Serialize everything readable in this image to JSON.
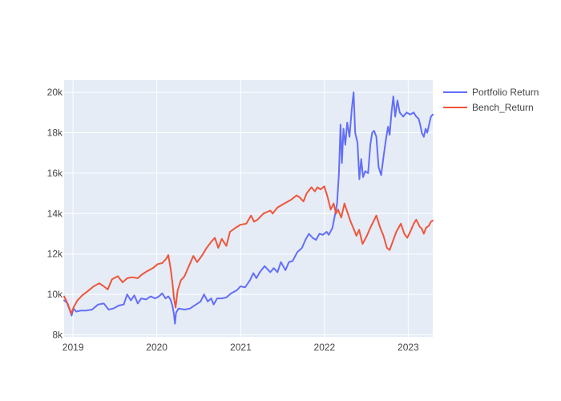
{
  "chart_data": {
    "type": "line",
    "title": "",
    "xlabel": "",
    "ylabel": "",
    "x_tick_labels": [
      "2019",
      "2020",
      "2021",
      "2022",
      "2023"
    ],
    "y_tick_labels": [
      "8k",
      "10k",
      "12k",
      "14k",
      "16k",
      "18k",
      "20k"
    ],
    "y_tick_values": [
      8000,
      10000,
      12000,
      14000,
      16000,
      18000,
      20000
    ],
    "xlim": [
      "2018-11-23",
      "2023-04-18"
    ],
    "ylim": [
      7900,
      20600
    ],
    "grid": true,
    "legend_position": "top-right",
    "plot_background": "#E5ECF6",
    "series": [
      {
        "name": "Portfolio Return",
        "color": "#636EFA",
        "points": [
          [
            "2018-11-23",
            9700
          ],
          [
            "2018-12-05",
            9600
          ],
          [
            "2018-12-18",
            9200
          ],
          [
            "2018-12-26",
            8950
          ],
          [
            "2019-01-03",
            9300
          ],
          [
            "2019-01-15",
            9150
          ],
          [
            "2019-02-05",
            9200
          ],
          [
            "2019-03-01",
            9200
          ],
          [
            "2019-03-25",
            9250
          ],
          [
            "2019-04-20",
            9500
          ],
          [
            "2019-05-15",
            9550
          ],
          [
            "2019-06-05",
            9250
          ],
          [
            "2019-06-25",
            9300
          ],
          [
            "2019-07-20",
            9450
          ],
          [
            "2019-08-10",
            9500
          ],
          [
            "2019-08-25",
            10000
          ],
          [
            "2019-09-10",
            9700
          ],
          [
            "2019-09-25",
            9950
          ],
          [
            "2019-10-10",
            9550
          ],
          [
            "2019-10-25",
            9800
          ],
          [
            "2019-11-15",
            9750
          ],
          [
            "2019-12-05",
            9900
          ],
          [
            "2019-12-25",
            9800
          ],
          [
            "2020-01-10",
            9900
          ],
          [
            "2020-01-25",
            10050
          ],
          [
            "2020-02-08",
            9800
          ],
          [
            "2020-02-20",
            9900
          ],
          [
            "2020-03-01",
            9750
          ],
          [
            "2020-03-10",
            9400
          ],
          [
            "2020-03-16",
            9000
          ],
          [
            "2020-03-20",
            8550
          ],
          [
            "2020-03-25",
            9100
          ],
          [
            "2020-04-05",
            9300
          ],
          [
            "2020-05-01",
            9250
          ],
          [
            "2020-05-25",
            9300
          ],
          [
            "2020-06-20",
            9500
          ],
          [
            "2020-07-10",
            9650
          ],
          [
            "2020-07-25",
            10000
          ],
          [
            "2020-08-10",
            9650
          ],
          [
            "2020-08-25",
            9800
          ],
          [
            "2020-09-05",
            9500
          ],
          [
            "2020-09-20",
            9800
          ],
          [
            "2020-10-10",
            9800
          ],
          [
            "2020-10-30",
            9850
          ],
          [
            "2020-11-20",
            10050
          ],
          [
            "2020-12-15",
            10200
          ],
          [
            "2020-12-31",
            10400
          ],
          [
            "2021-01-20",
            10350
          ],
          [
            "2021-02-10",
            10700
          ],
          [
            "2021-02-25",
            11050
          ],
          [
            "2021-03-10",
            10800
          ],
          [
            "2021-03-25",
            11100
          ],
          [
            "2021-04-15",
            11400
          ],
          [
            "2021-05-10",
            11100
          ],
          [
            "2021-05-25",
            11300
          ],
          [
            "2021-06-10",
            11100
          ],
          [
            "2021-06-25",
            11600
          ],
          [
            "2021-07-15",
            11200
          ],
          [
            "2021-07-30",
            11600
          ],
          [
            "2021-08-15",
            11650
          ],
          [
            "2021-09-05",
            12100
          ],
          [
            "2021-09-25",
            12300
          ],
          [
            "2021-10-10",
            12700
          ],
          [
            "2021-10-25",
            13000
          ],
          [
            "2021-11-10",
            12800
          ],
          [
            "2021-11-25",
            12700
          ],
          [
            "2021-12-10",
            13000
          ],
          [
            "2021-12-25",
            12950
          ],
          [
            "2022-01-10",
            13100
          ],
          [
            "2022-01-20",
            12950
          ],
          [
            "2022-02-05",
            13300
          ],
          [
            "2022-02-15",
            13900
          ],
          [
            "2022-02-25",
            14500
          ],
          [
            "2022-03-05",
            16000
          ],
          [
            "2022-03-12",
            18400
          ],
          [
            "2022-03-18",
            16500
          ],
          [
            "2022-03-25",
            18200
          ],
          [
            "2022-04-02",
            17400
          ],
          [
            "2022-04-10",
            18500
          ],
          [
            "2022-04-20",
            17800
          ],
          [
            "2022-04-30",
            19200
          ],
          [
            "2022-05-08",
            20000
          ],
          [
            "2022-05-15",
            18000
          ],
          [
            "2022-05-25",
            17500
          ],
          [
            "2022-06-02",
            15700
          ],
          [
            "2022-06-10",
            16700
          ],
          [
            "2022-06-18",
            15800
          ],
          [
            "2022-06-28",
            16100
          ],
          [
            "2022-07-10",
            16000
          ],
          [
            "2022-07-20",
            17400
          ],
          [
            "2022-07-28",
            18000
          ],
          [
            "2022-08-05",
            18100
          ],
          [
            "2022-08-15",
            17800
          ],
          [
            "2022-08-25",
            16300
          ],
          [
            "2022-09-05",
            15900
          ],
          [
            "2022-09-15",
            16800
          ],
          [
            "2022-09-25",
            17600
          ],
          [
            "2022-10-05",
            18300
          ],
          [
            "2022-10-12",
            17900
          ],
          [
            "2022-10-20",
            19000
          ],
          [
            "2022-10-28",
            19800
          ],
          [
            "2022-11-05",
            18800
          ],
          [
            "2022-11-15",
            19600
          ],
          [
            "2022-11-25",
            19000
          ],
          [
            "2022-12-10",
            18800
          ],
          [
            "2022-12-25",
            19000
          ],
          [
            "2023-01-10",
            18900
          ],
          [
            "2023-01-25",
            19000
          ],
          [
            "2023-02-05",
            18800
          ],
          [
            "2023-02-15",
            18700
          ],
          [
            "2023-02-22",
            18400
          ],
          [
            "2023-03-01",
            18000
          ],
          [
            "2023-03-10",
            17800
          ],
          [
            "2023-03-18",
            18200
          ],
          [
            "2023-03-25",
            18000
          ],
          [
            "2023-04-02",
            18400
          ],
          [
            "2023-04-10",
            18800
          ],
          [
            "2023-04-18",
            18900
          ]
        ]
      },
      {
        "name": "Bench_Return",
        "color": "#EF553B",
        "points": [
          [
            "2018-11-23",
            9900
          ],
          [
            "2018-12-10",
            9500
          ],
          [
            "2018-12-24",
            9050
          ],
          [
            "2019-01-05",
            9400
          ],
          [
            "2019-01-20",
            9700
          ],
          [
            "2019-02-10",
            9950
          ],
          [
            "2019-03-05",
            10150
          ],
          [
            "2019-04-01",
            10400
          ],
          [
            "2019-04-25",
            10550
          ],
          [
            "2019-05-15",
            10400
          ],
          [
            "2019-06-01",
            10250
          ],
          [
            "2019-06-20",
            10750
          ],
          [
            "2019-07-15",
            10900
          ],
          [
            "2019-08-05",
            10600
          ],
          [
            "2019-08-25",
            10800
          ],
          [
            "2019-09-15",
            10850
          ],
          [
            "2019-10-10",
            10800
          ],
          [
            "2019-10-30",
            11000
          ],
          [
            "2019-11-20",
            11150
          ],
          [
            "2019-12-15",
            11300
          ],
          [
            "2020-01-05",
            11500
          ],
          [
            "2020-01-25",
            11550
          ],
          [
            "2020-02-10",
            11750
          ],
          [
            "2020-02-20",
            11950
          ],
          [
            "2020-03-01",
            11300
          ],
          [
            "2020-03-10",
            10500
          ],
          [
            "2020-03-16",
            9800
          ],
          [
            "2020-03-23",
            9350
          ],
          [
            "2020-04-01",
            10200
          ],
          [
            "2020-04-15",
            10700
          ],
          [
            "2020-05-01",
            10900
          ],
          [
            "2020-05-20",
            11400
          ],
          [
            "2020-06-08",
            11900
          ],
          [
            "2020-06-25",
            11600
          ],
          [
            "2020-07-15",
            11900
          ],
          [
            "2020-08-05",
            12300
          ],
          [
            "2020-08-25",
            12600
          ],
          [
            "2020-09-10",
            12800
          ],
          [
            "2020-09-25",
            12300
          ],
          [
            "2020-10-10",
            12750
          ],
          [
            "2020-10-30",
            12400
          ],
          [
            "2020-11-15",
            13100
          ],
          [
            "2020-12-10",
            13300
          ],
          [
            "2020-12-31",
            13450
          ],
          [
            "2021-01-25",
            13500
          ],
          [
            "2021-02-15",
            13900
          ],
          [
            "2021-02-28",
            13600
          ],
          [
            "2021-03-15",
            13700
          ],
          [
            "2021-04-10",
            14000
          ],
          [
            "2021-05-10",
            14150
          ],
          [
            "2021-05-20",
            14000
          ],
          [
            "2021-06-10",
            14300
          ],
          [
            "2021-07-10",
            14500
          ],
          [
            "2021-08-10",
            14700
          ],
          [
            "2021-09-01",
            14900
          ],
          [
            "2021-09-15",
            14800
          ],
          [
            "2021-10-01",
            14600
          ],
          [
            "2021-10-15",
            15000
          ],
          [
            "2021-11-05",
            15300
          ],
          [
            "2021-11-20",
            15100
          ],
          [
            "2021-12-01",
            15300
          ],
          [
            "2021-12-15",
            15200
          ],
          [
            "2021-12-31",
            15350
          ],
          [
            "2022-01-15",
            14800
          ],
          [
            "2022-01-28",
            14200
          ],
          [
            "2022-02-10",
            14500
          ],
          [
            "2022-02-20",
            14000
          ],
          [
            "2022-03-01",
            14200
          ],
          [
            "2022-03-15",
            13800
          ],
          [
            "2022-03-29",
            14500
          ],
          [
            "2022-04-10",
            14100
          ],
          [
            "2022-04-25",
            13600
          ],
          [
            "2022-05-10",
            13200
          ],
          [
            "2022-05-20",
            12900
          ],
          [
            "2022-06-01",
            13200
          ],
          [
            "2022-06-16",
            12500
          ],
          [
            "2022-07-05",
            12900
          ],
          [
            "2022-07-20",
            13300
          ],
          [
            "2022-08-15",
            13900
          ],
          [
            "2022-09-01",
            13300
          ],
          [
            "2022-09-15",
            12900
          ],
          [
            "2022-09-30",
            12300
          ],
          [
            "2022-10-12",
            12200
          ],
          [
            "2022-10-25",
            12600
          ],
          [
            "2022-11-10",
            13100
          ],
          [
            "2022-11-30",
            13500
          ],
          [
            "2022-12-15",
            13000
          ],
          [
            "2022-12-28",
            12800
          ],
          [
            "2023-01-10",
            13100
          ],
          [
            "2023-01-25",
            13500
          ],
          [
            "2023-02-05",
            13700
          ],
          [
            "2023-02-20",
            13350
          ],
          [
            "2023-03-01",
            13250
          ],
          [
            "2023-03-10",
            13000
          ],
          [
            "2023-03-20",
            13300
          ],
          [
            "2023-04-01",
            13400
          ],
          [
            "2023-04-10",
            13600
          ],
          [
            "2023-04-18",
            13650
          ]
        ]
      }
    ]
  }
}
